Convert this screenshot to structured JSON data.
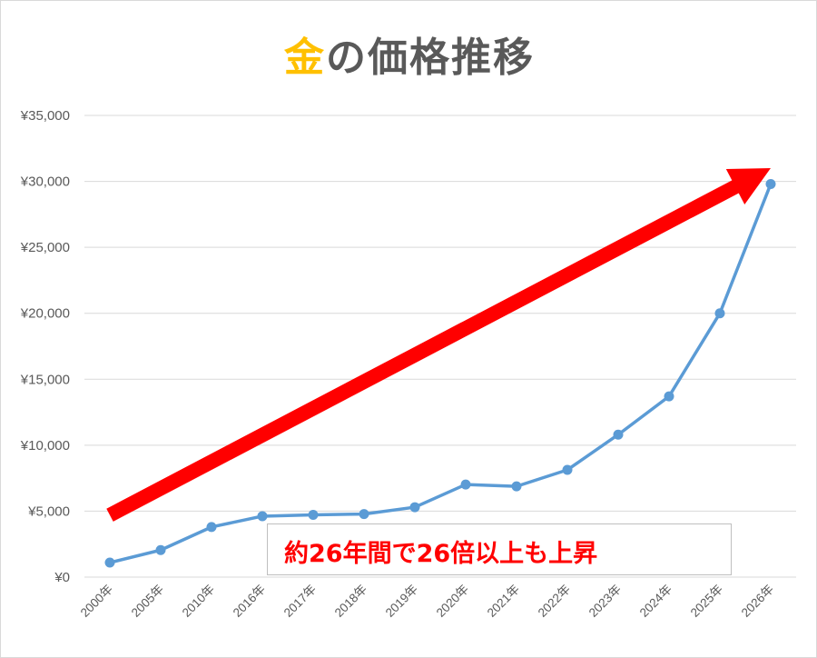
{
  "title": {
    "accent": "金",
    "rest": "の価格推移"
  },
  "annotation": "約26年間で26倍以上も上昇",
  "colors": {
    "title_accent": "#ffc000",
    "title_text": "#595959",
    "line": "#5b9bd5",
    "arrow": "#ff0000",
    "annotation_text": "#ff0000",
    "grid": "#d9d9d9"
  },
  "chart_data": {
    "type": "line",
    "title": "金の価格推移",
    "categories": [
      "2000年",
      "2005年",
      "2010年",
      "2016年",
      "2017年",
      "2018年",
      "2019年",
      "2020年",
      "2021年",
      "2022年",
      "2023年",
      "2024年",
      "2025年",
      "2026年"
    ],
    "series": [
      {
        "values": [
          1100,
          2050,
          3800,
          4620,
          4720,
          4780,
          5300,
          7020,
          6880,
          8130,
          10800,
          13700,
          20000,
          29800
        ]
      }
    ],
    "y_ticks": [
      "¥0",
      "¥5,000",
      "¥10,000",
      "¥15,000",
      "¥20,000",
      "¥25,000",
      "¥30,000",
      "¥35,000"
    ],
    "y_tick_values": [
      0,
      5000,
      10000,
      15000,
      20000,
      25000,
      30000,
      35000
    ],
    "ylim": [
      0,
      35000
    ],
    "grid": true,
    "legend": "none",
    "trend_arrow": {
      "from": {
        "category": "2000年",
        "value": 4700
      },
      "to": {
        "category": "2026年",
        "value": 31000
      }
    }
  }
}
